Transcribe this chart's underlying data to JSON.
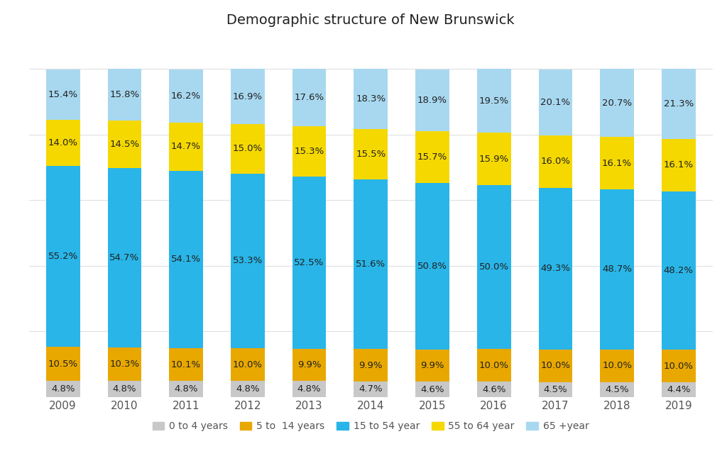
{
  "title": "Demographic structure of New Brunswick",
  "years": [
    2009,
    2010,
    2011,
    2012,
    2013,
    2014,
    2015,
    2016,
    2017,
    2018,
    2019
  ],
  "categories": [
    "0 to 4 years",
    "5 to  14 years",
    "15 to 54 year",
    "55 to 64 year",
    "65 +year"
  ],
  "colors": [
    "#c8c8c8",
    "#e8a800",
    "#29b5e8",
    "#f5d800",
    "#a8d8f0"
  ],
  "data": {
    "0 to 4 years": [
      4.8,
      4.8,
      4.8,
      4.8,
      4.8,
      4.7,
      4.6,
      4.6,
      4.5,
      4.5,
      4.4
    ],
    "5 to  14 years": [
      10.5,
      10.3,
      10.1,
      10.0,
      9.9,
      9.9,
      9.9,
      10.0,
      10.0,
      10.0,
      10.0
    ],
    "15 to 54 year": [
      55.2,
      54.7,
      54.1,
      53.3,
      52.5,
      51.6,
      50.8,
      50.0,
      49.3,
      48.7,
      48.2
    ],
    "55 to 64 year": [
      14.0,
      14.5,
      14.7,
      15.0,
      15.3,
      15.5,
      15.7,
      15.9,
      16.0,
      16.1,
      16.1
    ],
    "65 +year": [
      15.4,
      15.8,
      16.2,
      16.9,
      17.6,
      18.3,
      18.9,
      19.5,
      20.1,
      20.7,
      21.3
    ]
  },
  "bar_width": 0.55,
  "bg_color": "#ffffff",
  "grid_color": "#e0e0e0",
  "text_color": "#222222",
  "label_fontsize": 9.5,
  "title_fontsize": 14,
  "legend_fontsize": 10,
  "ylim": [
    0,
    110
  ]
}
